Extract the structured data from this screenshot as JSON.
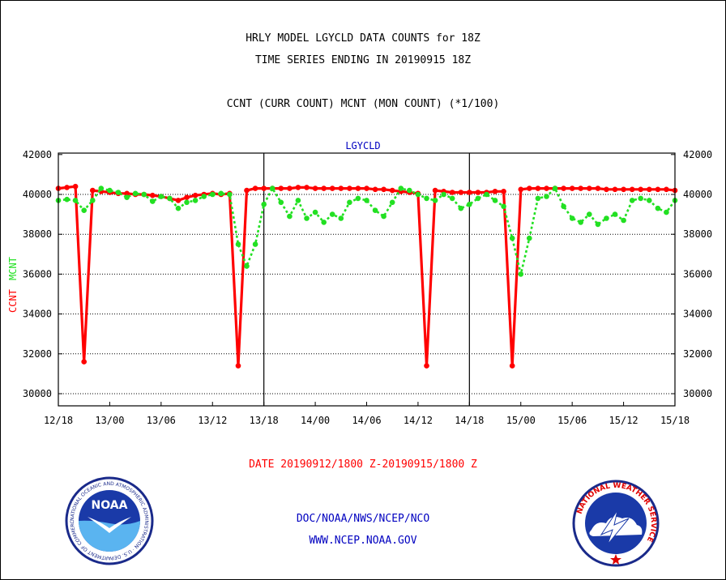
{
  "header": {
    "title_line1": "HRLY MODEL LGYCLD DATA COUNTS for 18Z",
    "title_line2": "TIME SERIES ENDING IN 20190915 18Z",
    "subtitle": "CCNT (CURR COUNT) MCNT (MON COUNT) (*1/100)"
  },
  "footer": {
    "date_range": "DATE 20190912/1800 Z-20190915/1800 Z",
    "org": "DOC/NOAA/NWS/NCEP/NCO",
    "url": "WWW.NCEP.NOAA.GOV"
  },
  "logos": {
    "noaa_text": "NOAA",
    "noaa_ring_text": "NATIONAL OCEANIC AND ATMOSPHERIC ADMINISTRATION · U.S. DEPARTMENT OF COMMERCE ·",
    "nws_ring_text": "NATIONAL WEATHER SERVICE"
  },
  "chart_data": {
    "type": "line",
    "title": "LGYCLD",
    "ylabel_ccnt": "CCNT",
    "ylabel_mcnt": "MCNT",
    "ylim": [
      29500,
      42000
    ],
    "yticks": [
      30000,
      32000,
      34000,
      36000,
      38000,
      40000,
      42000
    ],
    "xlim": [
      0,
      72
    ],
    "xtick_positions": [
      0,
      6,
      12,
      18,
      24,
      30,
      36,
      42,
      48,
      54,
      60,
      66,
      72
    ],
    "xtick_labels": [
      "12/18",
      "13/00",
      "13/06",
      "13/12",
      "13/18",
      "14/00",
      "14/06",
      "14/12",
      "14/18",
      "15/00",
      "15/06",
      "15/12",
      "15/18"
    ],
    "day_boundaries": [
      24,
      48
    ],
    "grid": "horizontal dotted",
    "colors": {
      "ccnt": "#ff0000",
      "mcnt": "#22e022",
      "title": "#0000c0"
    },
    "series": [
      {
        "name": "CCNT",
        "style": "solid",
        "values": [
          40300,
          40350,
          40400,
          31600,
          40200,
          40150,
          40100,
          40050,
          40050,
          40000,
          40000,
          39950,
          39900,
          39800,
          39700,
          39850,
          39950,
          40000,
          40050,
          40000,
          40050,
          31400,
          40200,
          40300,
          40300,
          40300,
          40300,
          40300,
          40350,
          40350,
          40300,
          40300,
          40300,
          40300,
          40300,
          40300,
          40300,
          40250,
          40250,
          40200,
          40150,
          40100,
          40050,
          31400,
          40200,
          40150,
          40100,
          40100,
          40100,
          40100,
          40100,
          40150,
          40150,
          31400,
          40250,
          40300,
          40300,
          40300,
          40300,
          40300,
          40300,
          40300,
          40300,
          40300,
          40250,
          40250,
          40250,
          40250,
          40250,
          40250,
          40250,
          40250,
          40200
        ]
      },
      {
        "name": "MCNT",
        "style": "dotted",
        "values": [
          39700,
          39750,
          39700,
          39200,
          39700,
          40300,
          40200,
          40100,
          39850,
          40050,
          40000,
          39650,
          39900,
          39800,
          39300,
          39600,
          39700,
          39900,
          40000,
          40050,
          40000,
          37500,
          36400,
          37500,
          39500,
          40300,
          39600,
          38900,
          39700,
          38800,
          39100,
          38600,
          39000,
          38800,
          39600,
          39800,
          39700,
          39200,
          38900,
          39600,
          40300,
          40200,
          40000,
          39800,
          39700,
          40000,
          39800,
          39300,
          39500,
          39800,
          40000,
          39700,
          39400,
          37800,
          36000,
          37800,
          39800,
          39900,
          40300,
          39400,
          38800,
          38600,
          39000,
          38500,
          38800,
          39000,
          38700,
          39700,
          39800,
          39700,
          39300,
          39100,
          39700
        ]
      }
    ]
  }
}
